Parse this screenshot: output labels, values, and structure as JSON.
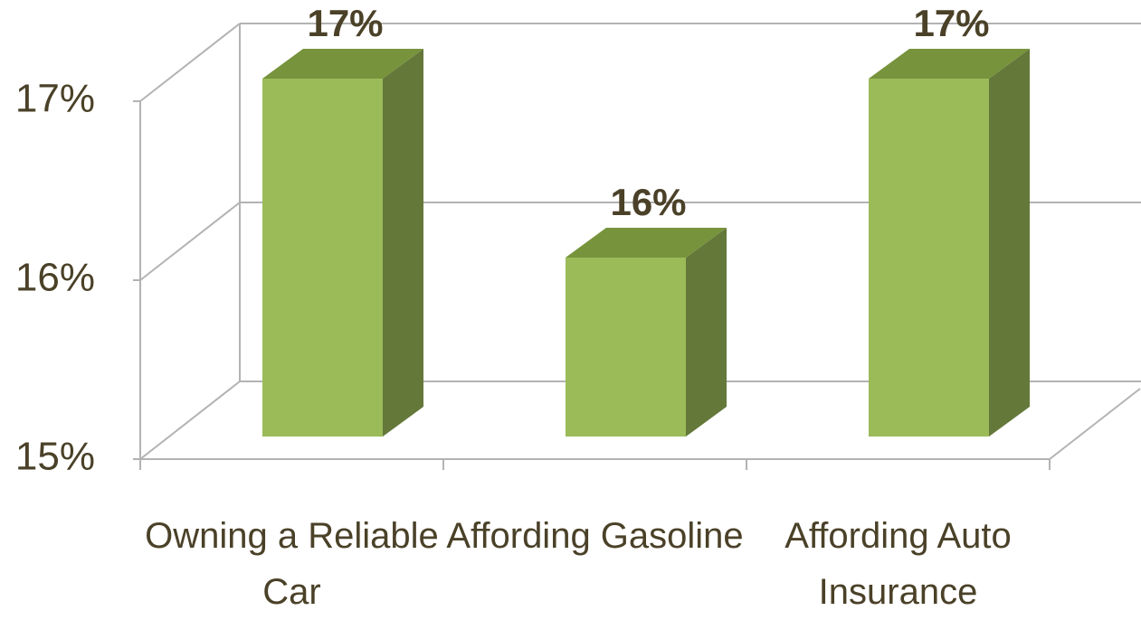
{
  "chart_data": {
    "type": "bar3d",
    "categories": [
      "Owning a Reliable Car",
      "Affording Gasoline",
      "Affording Auto Insurance"
    ],
    "values": [
      17,
      16,
      17
    ],
    "value_labels": [
      "17%",
      "16%",
      "17%"
    ],
    "color": "#9bbb59",
    "ylim": [
      15,
      17
    ],
    "yticks": [
      {
        "value": 15,
        "label": "15%"
      },
      {
        "value": 16,
        "label": "16%"
      },
      {
        "value": 17,
        "label": "17%"
      }
    ],
    "grid": true
  }
}
